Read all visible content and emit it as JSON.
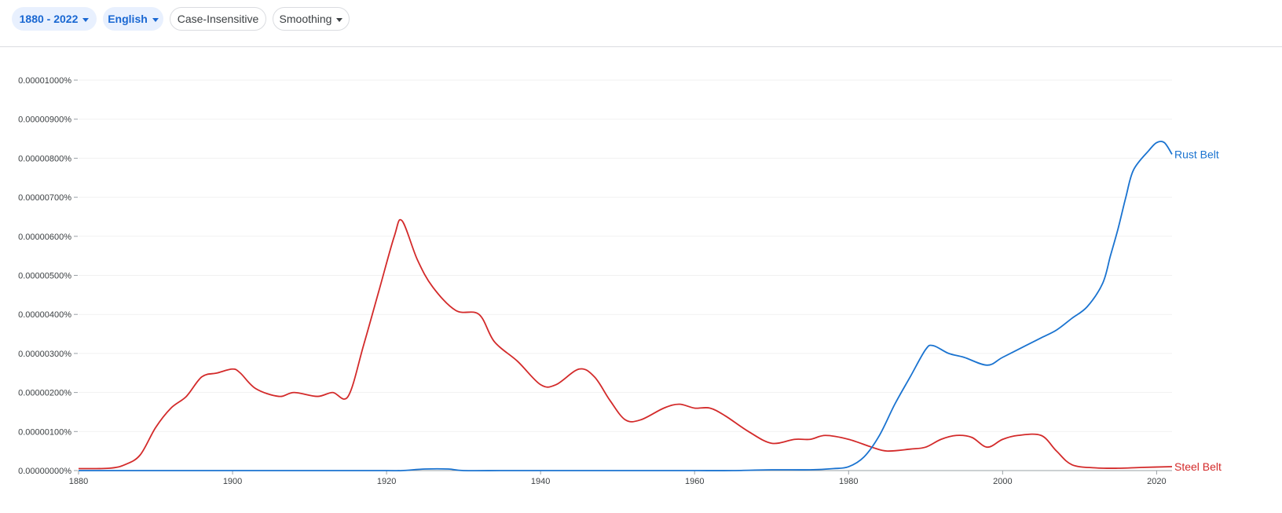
{
  "toolbar": {
    "years_label": "1880 - 2022",
    "language_label": "English",
    "case_label": "Case-Insensitive",
    "smoothing_label": "Smoothing"
  },
  "colors": {
    "rust_belt": "#1a73d0",
    "steel_belt": "#d32a2a",
    "grid": "#f1f1f1",
    "axis": "#9aa0a6"
  },
  "icons": {
    "dropdown": "caret-down-icon"
  },
  "chart_data": {
    "type": "line",
    "xlim": [
      1880,
      2022
    ],
    "ylim": [
      0,
      1e-05
    ],
    "grid": true,
    "legend": "end-of-line labels",
    "x_ticks": [
      1880,
      1900,
      1920,
      1940,
      1960,
      1980,
      2000,
      2020
    ],
    "x_tick_labels": [
      "1880",
      "1900",
      "1920",
      "1940",
      "1960",
      "1980",
      "2000",
      "2020"
    ],
    "y_ticks": [
      0,
      1e-06,
      2e-06,
      3e-06,
      4e-06,
      5e-06,
      6e-06,
      7e-06,
      8e-06,
      9e-06,
      1e-05
    ],
    "y_tick_labels": [
      "0.00000000%",
      "0.00000100%",
      "0.00000200%",
      "0.00000300%",
      "0.00000400%",
      "0.00000500%",
      "0.00000600%",
      "0.00000700%",
      "0.00000800%",
      "0.00000900%",
      "0.00001000%"
    ],
    "series": [
      {
        "name": "Rust Belt",
        "color": "#1a73d0",
        "points": [
          [
            1880,
            0.0
          ],
          [
            1885,
            0.0
          ],
          [
            1890,
            0.0
          ],
          [
            1895,
            0.0
          ],
          [
            1900,
            0.0
          ],
          [
            1905,
            0.0
          ],
          [
            1910,
            0.0
          ],
          [
            1915,
            0.0
          ],
          [
            1920,
            0.0
          ],
          [
            1922,
            0.0
          ],
          [
            1925,
            4e-08
          ],
          [
            1928,
            4e-08
          ],
          [
            1930,
            0.0
          ],
          [
            1935,
            0.0
          ],
          [
            1940,
            0.0
          ],
          [
            1945,
            0.0
          ],
          [
            1950,
            0.0
          ],
          [
            1955,
            0.0
          ],
          [
            1960,
            0.0
          ],
          [
            1965,
            0.0
          ],
          [
            1970,
            2e-08
          ],
          [
            1975,
            2e-08
          ],
          [
            1978,
            5e-08
          ],
          [
            1980,
            1e-07
          ],
          [
            1982,
            3.5e-07
          ],
          [
            1984,
            9e-07
          ],
          [
            1986,
            1.7e-06
          ],
          [
            1988,
            2.4e-06
          ],
          [
            1990,
            3.1e-06
          ],
          [
            1991,
            3.2e-06
          ],
          [
            1993,
            3e-06
          ],
          [
            1995,
            2.9e-06
          ],
          [
            1998,
            2.7e-06
          ],
          [
            2000,
            2.9e-06
          ],
          [
            2003,
            3.2e-06
          ],
          [
            2005,
            3.4e-06
          ],
          [
            2007,
            3.6e-06
          ],
          [
            2009,
            3.9e-06
          ],
          [
            2011,
            4.2e-06
          ],
          [
            2013,
            4.8e-06
          ],
          [
            2014,
            5.5e-06
          ],
          [
            2015,
            6.2e-06
          ],
          [
            2016,
            7e-06
          ],
          [
            2017,
            7.7e-06
          ],
          [
            2019,
            8.2e-06
          ],
          [
            2020,
            8.4e-06
          ],
          [
            2021,
            8.4e-06
          ],
          [
            2022,
            8.1e-06
          ]
        ]
      },
      {
        "name": "Steel Belt",
        "color": "#d32a2a",
        "points": [
          [
            1880,
            5e-08
          ],
          [
            1884,
            6e-08
          ],
          [
            1886,
            1.5e-07
          ],
          [
            1888,
            4e-07
          ],
          [
            1890,
            1.1e-06
          ],
          [
            1892,
            1.6e-06
          ],
          [
            1894,
            1.9e-06
          ],
          [
            1896,
            2.4e-06
          ],
          [
            1898,
            2.5e-06
          ],
          [
            1900,
            2.6e-06
          ],
          [
            1901,
            2.5e-06
          ],
          [
            1903,
            2.1e-06
          ],
          [
            1906,
            1.9e-06
          ],
          [
            1908,
            2e-06
          ],
          [
            1911,
            1.9e-06
          ],
          [
            1913,
            2e-06
          ],
          [
            1915,
            1.9e-06
          ],
          [
            1917,
            3.2e-06
          ],
          [
            1919,
            4.6e-06
          ],
          [
            1921,
            6e-06
          ],
          [
            1922,
            6.4e-06
          ],
          [
            1924,
            5.4e-06
          ],
          [
            1926,
            4.7e-06
          ],
          [
            1929,
            4.1e-06
          ],
          [
            1932,
            4e-06
          ],
          [
            1934,
            3.3e-06
          ],
          [
            1937,
            2.8e-06
          ],
          [
            1940,
            2.2e-06
          ],
          [
            1942,
            2.2e-06
          ],
          [
            1945,
            2.6e-06
          ],
          [
            1947,
            2.4e-06
          ],
          [
            1949,
            1.8e-06
          ],
          [
            1951,
            1.3e-06
          ],
          [
            1953,
            1.3e-06
          ],
          [
            1956,
            1.6e-06
          ],
          [
            1958,
            1.7e-06
          ],
          [
            1960,
            1.6e-06
          ],
          [
            1962,
            1.6e-06
          ],
          [
            1964,
            1.4e-06
          ],
          [
            1967,
            1e-06
          ],
          [
            1970,
            7e-07
          ],
          [
            1973,
            8e-07
          ],
          [
            1975,
            8e-07
          ],
          [
            1977,
            9e-07
          ],
          [
            1980,
            8e-07
          ],
          [
            1983,
            6e-07
          ],
          [
            1985,
            5e-07
          ],
          [
            1988,
            5.5e-07
          ],
          [
            1990,
            6e-07
          ],
          [
            1992,
            8e-07
          ],
          [
            1994,
            9e-07
          ],
          [
            1996,
            8.5e-07
          ],
          [
            1998,
            6e-07
          ],
          [
            2000,
            8e-07
          ],
          [
            2002,
            9e-07
          ],
          [
            2005,
            9e-07
          ],
          [
            2007,
            5e-07
          ],
          [
            2009,
            1.5e-07
          ],
          [
            2012,
            7e-08
          ],
          [
            2015,
            6e-08
          ],
          [
            2018,
            8e-08
          ],
          [
            2022,
            1e-07
          ]
        ]
      }
    ]
  }
}
